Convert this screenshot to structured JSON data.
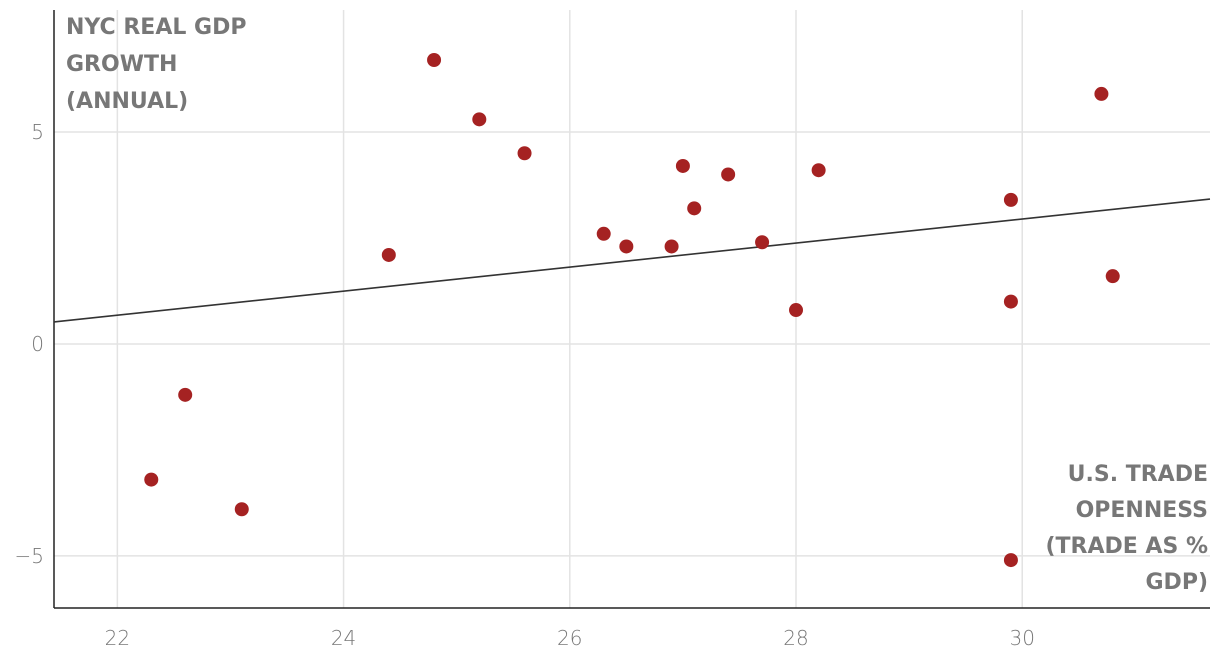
{
  "chart_data": {
    "type": "scatter",
    "xlabel": [
      "U.S. TRADE",
      "OPENNESS",
      "(TRADE AS %",
      "GDP)"
    ],
    "ylabel": [
      "NYC REAL GDP",
      "GROWTH",
      "(ANNUAL)"
    ],
    "x": [
      22.3,
      22.6,
      23.1,
      24.4,
      24.8,
      25.2,
      25.6,
      26.3,
      26.5,
      26.9,
      27.0,
      27.1,
      27.4,
      27.7,
      28.0,
      28.2,
      29.9,
      29.9,
      29.9,
      30.7,
      30.8
    ],
    "values": [
      -3.2,
      -1.2,
      -3.9,
      2.1,
      6.7,
      5.3,
      4.5,
      2.6,
      2.3,
      2.3,
      4.2,
      3.2,
      4.0,
      2.4,
      0.8,
      4.1,
      3.4,
      1.0,
      -5.1,
      5.9,
      1.6
    ],
    "color": "#a52222",
    "trendline": {
      "x": [
        21.44,
        31.66
      ],
      "y": [
        0.52,
        3.42
      ],
      "color": "#333333"
    },
    "xlim": [
      21.44,
      31.66
    ],
    "ylim": [
      -6.23,
      7.88
    ],
    "xticks": [
      22,
      24,
      26,
      28,
      30
    ],
    "yticks": [
      {
        "value": -5,
        "label": "−5"
      },
      0,
      5
    ],
    "grid": true
  }
}
